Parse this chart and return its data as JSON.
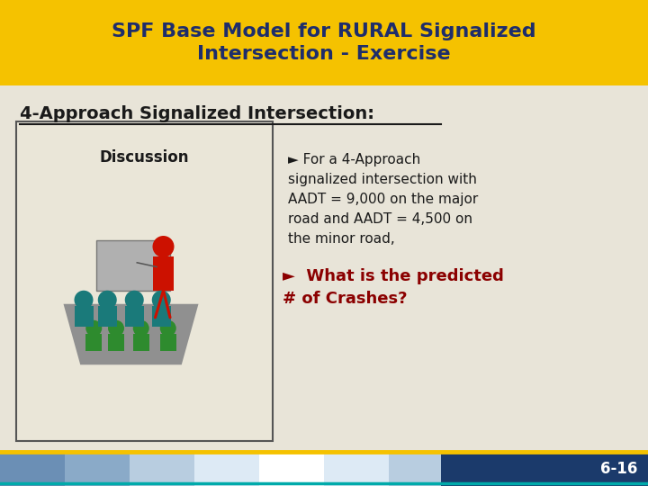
{
  "title_text": "SPF Base Model for RURAL Signalized\nIntersection - Exercise",
  "title_bg": "#F5C200",
  "title_color": "#1E2D6B",
  "body_bg": "#E8E4D8",
  "subtitle": "4-Approach Signalized Intersection:",
  "subtitle_color": "#1a1a1a",
  "box_label": "Discussion",
  "box_bg": "#EAE6D8",
  "box_edge": "#555555",
  "bullet1_line1": "► For a 4-Approach",
  "bullet1_line2": "signalized intersection with",
  "bullet1_line3": "AADT = 9,000 on the major",
  "bullet1_line4": "road and AADT = 4,500 on",
  "bullet1_line5": "the minor road,",
  "bullet1_color": "#1a1a1a",
  "bullet2": "►  What is the predicted\n# of Crashes?",
  "bullet2_color": "#8B0000",
  "footer_text": "6-16",
  "footer_bg": "#1B3A6B",
  "footer_text_color": "#ffffff",
  "bar_colors": [
    "#6B8FB5",
    "#8AAAC8",
    "#B8CDE0",
    "#DDEAF5",
    "#FFFFFF",
    "#DDEAF5",
    "#B8CDE0",
    "#8AAAC8",
    "#6B8FB5",
    "#4A6E94"
  ],
  "gold_color": "#F5C200",
  "teal_color": "#00AAAA"
}
